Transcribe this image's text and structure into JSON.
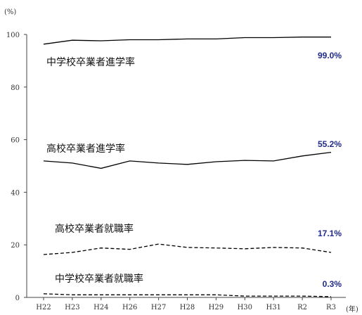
{
  "chart_data": {
    "type": "line",
    "title": "",
    "xlabel": "(年)",
    "ylabel": "(%)",
    "categories": [
      "H22",
      "H23",
      "H24",
      "H26",
      "H27",
      "H28",
      "H29",
      "H30",
      "H31",
      "R2",
      "R3"
    ],
    "yticks": [
      "0",
      "20",
      "40",
      "60",
      "80",
      "100"
    ],
    "ylim": [
      0,
      100
    ],
    "grid": false,
    "series": [
      {
        "name": "中学校卒業者進学率",
        "values": [
          96.3,
          97.8,
          97.6,
          98.0,
          98.0,
          98.3,
          98.3,
          98.8,
          98.8,
          99.0,
          99.0
        ],
        "style": "solid",
        "end_label": "99.0%"
      },
      {
        "name": "高校卒業者進学率",
        "values": [
          51.9,
          51.1,
          49.1,
          51.9,
          51.1,
          50.6,
          51.6,
          52.1,
          51.9,
          53.8,
          55.2
        ],
        "style": "solid",
        "end_label": "55.2%"
      },
      {
        "name": "高校卒業者就職率",
        "values": [
          16.3,
          17.1,
          18.8,
          18.3,
          20.3,
          19.0,
          18.8,
          18.5,
          19.0,
          18.8,
          17.1
        ],
        "style": "dashed",
        "end_label": "17.1%"
      },
      {
        "name": "中学校卒業者就職率",
        "values": [
          1.4,
          1.0,
          1.0,
          1.0,
          1.0,
          1.0,
          1.0,
          0.5,
          0.5,
          0.5,
          0.3
        ],
        "style": "dashed",
        "end_label": "0.3%"
      }
    ],
    "colors": {
      "line": "#000000",
      "end_label": "#1f2a8c",
      "axis": "#444444"
    }
  }
}
